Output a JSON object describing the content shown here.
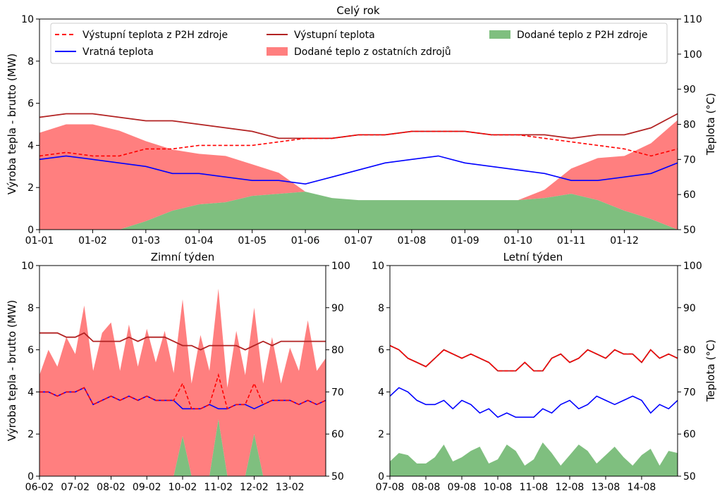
{
  "colors": {
    "p2h_outlet": "#ff0000",
    "outlet": "#b22222",
    "return": "#0000ff",
    "heat_other": "#ff7f7f",
    "heat_p2h": "#7fbf7f"
  },
  "chart_data": [
    {
      "id": "year",
      "type": "area",
      "title": "Celý rok",
      "ylabel_left": "Výroba tepla - brutto (MW)",
      "ylabel_right": "Teplota (°C)",
      "ylim_left": [
        0,
        10
      ],
      "ylim_right": [
        50,
        110
      ],
      "yticks_left": [
        "0",
        "2",
        "4",
        "6",
        "8",
        "10"
      ],
      "yticks_right": [
        "50",
        "60",
        "70",
        "80",
        "90",
        "100",
        "110"
      ],
      "xticks": [
        "01-01",
        "01-02",
        "01-03",
        "01-04",
        "01-05",
        "01-06",
        "01-07",
        "01-08",
        "01-09",
        "01-10",
        "01-11",
        "01-12"
      ],
      "x_unit": "month",
      "legend": {
        "placement": "top",
        "entries": [
          {
            "label": "Výstupní teplota z P2H zdroje",
            "style": "dashed",
            "color": "#ff0000"
          },
          {
            "label": "Vratná teplota",
            "style": "line",
            "color": "#0000ff"
          },
          {
            "label": "Výstupní teplota",
            "style": "line",
            "color": "#b22222"
          },
          {
            "label": "Dodané teplo z ostatních zdrojů",
            "style": "patch",
            "color": "#ff7f7f"
          },
          {
            "label": "Dodané teplo z P2H zdroje",
            "style": "patch",
            "color": "#7fbf7f"
          }
        ]
      },
      "x": [
        0,
        0.5,
        1,
        1.5,
        2,
        2.5,
        3,
        3.5,
        4,
        4.5,
        5,
        5.5,
        6,
        6.5,
        7,
        7.5,
        8,
        8.5,
        9,
        9.5,
        10,
        10.5,
        11,
        11.5,
        12
      ],
      "series": [
        {
          "name": "Dodané teplo z ostatních zdrojů",
          "kind": "area",
          "values": [
            4.6,
            5.0,
            5.0,
            4.7,
            3.8,
            2.9,
            2.4,
            2.2,
            1.5,
            1.0,
            0,
            0,
            0,
            0,
            0,
            0,
            0,
            0,
            0,
            0.4,
            1.2,
            2.0,
            2.6,
            3.6,
            5.2
          ]
        },
        {
          "name": "Dodané teplo z P2H zdroje",
          "kind": "area",
          "values": [
            0,
            0,
            0,
            0,
            0.4,
            0.9,
            1.2,
            1.3,
            1.6,
            1.7,
            1.8,
            1.5,
            1.4,
            1.4,
            1.4,
            1.4,
            1.4,
            1.4,
            1.4,
            1.5,
            1.7,
            1.4,
            0.9,
            0.5,
            0
          ]
        },
        {
          "name": "Výstupní teplota",
          "kind": "line",
          "values": [
            82,
            83,
            83,
            82,
            81,
            81,
            80,
            79,
            78,
            76,
            76,
            76,
            77,
            77,
            78,
            78,
            78,
            77,
            77,
            77,
            76,
            77,
            77,
            79,
            83
          ]
        },
        {
          "name": "Výstupní teplota z P2H zdroje",
          "kind": "line",
          "values": [
            71,
            72,
            71,
            71,
            73,
            73,
            74,
            74,
            74,
            75,
            76,
            76,
            77,
            77,
            78,
            78,
            78,
            77,
            77,
            76,
            75,
            74,
            73,
            71,
            73
          ]
        },
        {
          "name": "Vratná teplota",
          "kind": "line",
          "values": [
            70,
            71,
            70,
            69,
            68,
            66,
            66,
            65,
            64,
            64,
            63,
            65,
            67,
            69,
            70,
            71,
            69,
            68,
            67,
            66,
            64,
            64,
            65,
            66,
            69
          ]
        }
      ]
    },
    {
      "id": "winter",
      "type": "area",
      "title": "Zimní týden",
      "ylabel_left": "Výroba tepla - brutto (MW)",
      "ylabel_right": "",
      "ylim_left": [
        0,
        10
      ],
      "ylim_right": [
        50,
        100
      ],
      "yticks_left": [
        "0",
        "2",
        "4",
        "6",
        "8",
        "10"
      ],
      "yticks_right": [
        "50",
        "60",
        "70",
        "80",
        "90",
        "100"
      ],
      "xticks": [
        "06-02",
        "07-02",
        "08-02",
        "09-02",
        "10-02",
        "11-02",
        "12-02",
        "13-02"
      ],
      "x_unit": "day",
      "x": [
        0,
        0.25,
        0.5,
        0.75,
        1,
        1.25,
        1.5,
        1.75,
        2,
        2.25,
        2.5,
        2.75,
        3,
        3.25,
        3.5,
        3.75,
        4,
        4.25,
        4.5,
        4.75,
        5,
        5.25,
        5.5,
        5.75,
        6,
        6.25,
        6.5,
        6.75,
        7,
        7.25,
        7.5,
        7.75,
        8
      ],
      "series": [
        {
          "name": "Dodané teplo z ostatních zdrojů",
          "kind": "area",
          "values": [
            4.8,
            6.0,
            5.2,
            6.6,
            5.8,
            8.1,
            5.0,
            6.8,
            7.3,
            5.0,
            7.2,
            5.2,
            7.0,
            5.4,
            6.9,
            4.9,
            6.5,
            4.4,
            6.7,
            5.0,
            6.2,
            4.2,
            6.9,
            4.8,
            6.0,
            4.4,
            6.6,
            4.4,
            6.1,
            5.0,
            7.4,
            5.0,
            5.6
          ]
        },
        {
          "name": "Dodané teplo z P2H zdroje",
          "kind": "area",
          "values": [
            0,
            0,
            0,
            0,
            0,
            0,
            0,
            0,
            0,
            0,
            0,
            0,
            0,
            0,
            0,
            0,
            1.9,
            0,
            0,
            0,
            2.7,
            0,
            0,
            0,
            2.0,
            0,
            0,
            0,
            0,
            0,
            0,
            0,
            0
          ]
        },
        {
          "name": "Výstupní teplota",
          "kind": "line",
          "values": [
            84,
            84,
            84,
            83,
            83,
            84,
            82,
            82,
            82,
            82,
            83,
            82,
            83,
            83,
            83,
            82,
            81,
            81,
            80,
            81,
            81,
            81,
            81,
            80,
            81,
            82,
            81,
            82,
            82,
            82,
            82,
            82,
            82
          ]
        },
        {
          "name": "Výstupní teplota z P2H zdroje",
          "kind": "line",
          "values": [
            70,
            70,
            69,
            70,
            70,
            71,
            67,
            68,
            69,
            68,
            69,
            68,
            69,
            68,
            68,
            68,
            72,
            66,
            66,
            67,
            74,
            66,
            67,
            67,
            72,
            67,
            68,
            68,
            68,
            67,
            68,
            67,
            68
          ]
        },
        {
          "name": "Vratná teplota",
          "kind": "line",
          "values": [
            70,
            70,
            69,
            70,
            70,
            71,
            67,
            68,
            69,
            68,
            69,
            68,
            69,
            68,
            68,
            68,
            66,
            66,
            66,
            67,
            66,
            66,
            67,
            67,
            66,
            67,
            68,
            68,
            68,
            67,
            68,
            67,
            68
          ]
        }
      ]
    },
    {
      "id": "summer",
      "type": "area",
      "title": "Letní týden",
      "ylabel_left": "",
      "ylabel_right": "Teplota (°C)",
      "ylim_left": [
        0,
        10
      ],
      "ylim_right": [
        50,
        100
      ],
      "yticks_left": [
        "0",
        "2",
        "4",
        "6",
        "8",
        "10"
      ],
      "yticks_right": [
        "50",
        "60",
        "70",
        "80",
        "90",
        "100"
      ],
      "xticks": [
        "07-08",
        "08-08",
        "09-08",
        "10-08",
        "11-08",
        "12-08",
        "13-08",
        "14-08"
      ],
      "x_unit": "day",
      "x": [
        0,
        0.25,
        0.5,
        0.75,
        1,
        1.25,
        1.5,
        1.75,
        2,
        2.25,
        2.5,
        2.75,
        3,
        3.25,
        3.5,
        3.75,
        4,
        4.25,
        4.5,
        4.75,
        5,
        5.25,
        5.5,
        5.75,
        6,
        6.25,
        6.5,
        6.75,
        7,
        7.25,
        7.5,
        7.75,
        8
      ],
      "series": [
        {
          "name": "Dodané teplo z ostatních zdrojů",
          "kind": "area",
          "values": [
            0,
            0,
            0,
            0,
            0,
            0,
            0,
            0,
            0,
            0,
            0,
            0,
            0,
            0,
            0,
            0,
            0,
            0,
            0,
            0,
            0,
            0,
            0,
            0,
            0,
            0,
            0,
            0,
            0,
            0,
            0,
            0,
            0
          ]
        },
        {
          "name": "Dodané teplo z P2H zdroje",
          "kind": "area",
          "values": [
            0.7,
            1.1,
            1.0,
            0.6,
            0.6,
            0.9,
            1.5,
            0.7,
            0.9,
            1.2,
            1.4,
            0.6,
            0.8,
            1.5,
            1.2,
            0.5,
            0.8,
            1.6,
            1.1,
            0.5,
            1.0,
            1.5,
            1.2,
            0.6,
            1.0,
            1.4,
            0.9,
            0.5,
            1.0,
            1.3,
            0.5,
            1.2,
            1.1
          ]
        },
        {
          "name": "Výstupní teplota",
          "kind": "line",
          "values": [
            81,
            80,
            78,
            77,
            76,
            78,
            80,
            79,
            78,
            79,
            78,
            77,
            75,
            75,
            75,
            77,
            75,
            75,
            78,
            79,
            77,
            78,
            80,
            79,
            78,
            80,
            79,
            79,
            77,
            80,
            78,
            79,
            78
          ]
        },
        {
          "name": "Výstupní teplota z P2H zdroje",
          "kind": "line",
          "values": [
            81,
            80,
            78,
            77,
            76,
            78,
            80,
            79,
            78,
            79,
            78,
            77,
            75,
            75,
            75,
            77,
            75,
            75,
            78,
            79,
            77,
            78,
            80,
            79,
            78,
            80,
            79,
            79,
            77,
            80,
            78,
            79,
            78
          ]
        },
        {
          "name": "Vratná teplota",
          "kind": "line",
          "values": [
            69,
            71,
            70,
            68,
            67,
            67,
            68,
            66,
            68,
            67,
            65,
            66,
            64,
            65,
            64,
            64,
            64,
            66,
            65,
            67,
            68,
            66,
            67,
            69,
            68,
            67,
            68,
            69,
            68,
            65,
            67,
            66,
            68
          ]
        }
      ]
    }
  ]
}
